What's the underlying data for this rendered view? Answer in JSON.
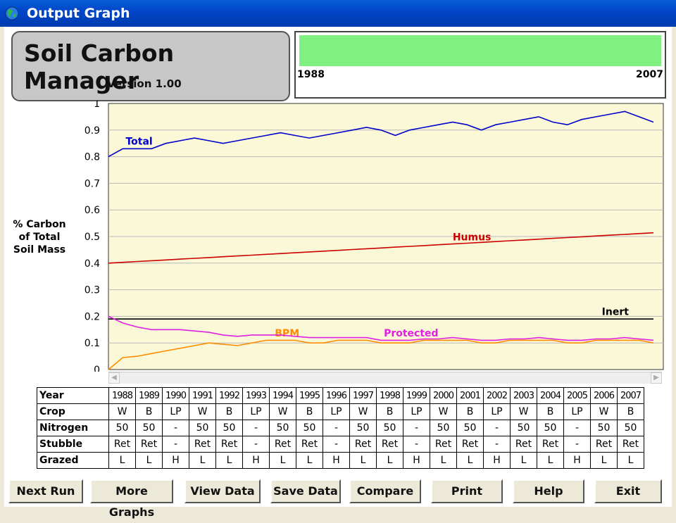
{
  "window": {
    "title": "Output Graph"
  },
  "header": {
    "app_name": "Soil Carbon Manager",
    "version": "Version 1.00",
    "range_start": "1988",
    "range_end": "2007"
  },
  "colors": {
    "plot_bg": "#fbf8d8",
    "total": "#0000cc",
    "humus": "#cc0000",
    "inert": "#000000",
    "bpm": "#ff8c00",
    "protected": "#e020e0",
    "range_fill": "#80f080"
  },
  "chart_data": {
    "type": "line",
    "ylabel": "% Carbon of Total Soil Mass",
    "ylim": [
      0,
      1
    ],
    "yticks": [
      "1",
      "0.9",
      "0.8",
      "0.7",
      "0.6",
      "0.5",
      "0.4",
      "0.3",
      "0.2",
      "0.1",
      "0"
    ],
    "grid": true,
    "x": [
      1988,
      1988.5,
      1989,
      1989.5,
      1990,
      1990.5,
      1991,
      1991.5,
      1992,
      1992.5,
      1993,
      1993.5,
      1994,
      1994.5,
      1995,
      1995.5,
      1996,
      1996.5,
      1997,
      1997.5,
      1998,
      1998.5,
      1999,
      1999.5,
      2000,
      2000.5,
      2001,
      2001.5,
      2002,
      2002.5,
      2003,
      2003.5,
      2004,
      2004.5,
      2005,
      2005.5,
      2006,
      2006.5,
      2007
    ],
    "series": [
      {
        "name": "Total",
        "values": [
          0.8,
          0.83,
          0.83,
          0.83,
          0.85,
          0.86,
          0.87,
          0.86,
          0.85,
          0.86,
          0.87,
          0.88,
          0.89,
          0.88,
          0.87,
          0.88,
          0.89,
          0.9,
          0.91,
          0.9,
          0.88,
          0.9,
          0.91,
          0.92,
          0.93,
          0.92,
          0.9,
          0.92,
          0.93,
          0.94,
          0.95,
          0.93,
          0.92,
          0.94,
          0.95,
          0.96,
          0.97,
          0.95,
          0.93
        ]
      },
      {
        "name": "Humus",
        "values": [
          0.4,
          0.403,
          0.406,
          0.409,
          0.412,
          0.415,
          0.418,
          0.421,
          0.424,
          0.427,
          0.43,
          0.433,
          0.436,
          0.439,
          0.442,
          0.445,
          0.448,
          0.451,
          0.454,
          0.457,
          0.46,
          0.463,
          0.466,
          0.469,
          0.472,
          0.475,
          0.478,
          0.481,
          0.484,
          0.487,
          0.49,
          0.493,
          0.496,
          0.499,
          0.502,
          0.505,
          0.508,
          0.511,
          0.514
        ]
      },
      {
        "name": "Inert",
        "values": [
          0.19,
          0.19,
          0.19,
          0.19,
          0.19,
          0.19,
          0.19,
          0.19,
          0.19,
          0.19,
          0.19,
          0.19,
          0.19,
          0.19,
          0.19,
          0.19,
          0.19,
          0.19,
          0.19,
          0.19,
          0.19,
          0.19,
          0.19,
          0.19,
          0.19,
          0.19,
          0.19,
          0.19,
          0.19,
          0.19,
          0.19,
          0.19,
          0.19,
          0.19,
          0.19,
          0.19,
          0.19,
          0.19,
          0.19
        ]
      },
      {
        "name": "BPM",
        "values": [
          0.0,
          0.045,
          0.05,
          0.06,
          0.07,
          0.08,
          0.09,
          0.1,
          0.095,
          0.09,
          0.1,
          0.11,
          0.11,
          0.11,
          0.1,
          0.1,
          0.11,
          0.11,
          0.11,
          0.1,
          0.1,
          0.1,
          0.11,
          0.11,
          0.11,
          0.11,
          0.1,
          0.1,
          0.11,
          0.11,
          0.11,
          0.11,
          0.1,
          0.1,
          0.11,
          0.11,
          0.11,
          0.11,
          0.1
        ]
      },
      {
        "name": "Protected",
        "values": [
          0.2,
          0.175,
          0.16,
          0.15,
          0.15,
          0.15,
          0.145,
          0.14,
          0.13,
          0.125,
          0.13,
          0.13,
          0.13,
          0.125,
          0.12,
          0.12,
          0.12,
          0.12,
          0.12,
          0.11,
          0.11,
          0.11,
          0.115,
          0.115,
          0.12,
          0.115,
          0.11,
          0.11,
          0.115,
          0.115,
          0.12,
          0.115,
          0.11,
          0.11,
          0.115,
          0.115,
          0.12,
          0.115,
          0.11
        ]
      }
    ]
  },
  "table": {
    "row_headers": [
      "Year",
      "Crop",
      "Nitrogen",
      "Stubble",
      "Grazed"
    ],
    "rows": [
      [
        "1988",
        "1989",
        "1990",
        "1991",
        "1992",
        "1993",
        "1994",
        "1995",
        "1996",
        "1997",
        "1998",
        "1999",
        "2000",
        "2001",
        "2002",
        "2003",
        "2004",
        "2005",
        "2006",
        "2007"
      ],
      [
        "W",
        "B",
        "LP",
        "W",
        "B",
        "LP",
        "W",
        "B",
        "LP",
        "W",
        "B",
        "LP",
        "W",
        "B",
        "LP",
        "W",
        "B",
        "LP",
        "W",
        "B"
      ],
      [
        "50",
        "50",
        "-",
        "50",
        "50",
        "-",
        "50",
        "50",
        "-",
        "50",
        "50",
        "-",
        "50",
        "50",
        "-",
        "50",
        "50",
        "-",
        "50",
        "50"
      ],
      [
        "Ret",
        "Ret",
        "-",
        "Ret",
        "Ret",
        "-",
        "Ret",
        "Ret",
        "-",
        "Ret",
        "Ret",
        "-",
        "Ret",
        "Ret",
        "-",
        "Ret",
        "Ret",
        "-",
        "Ret",
        "Ret"
      ],
      [
        "L",
        "L",
        "H",
        "L",
        "L",
        "H",
        "L",
        "L",
        "H",
        "L",
        "L",
        "H",
        "L",
        "L",
        "H",
        "L",
        "L",
        "H",
        "L",
        "L"
      ]
    ]
  },
  "buttons": [
    "Next Run",
    "More Graphs",
    "View  Data",
    "Save Data",
    "Compare",
    "Print",
    "Help",
    "Exit"
  ]
}
